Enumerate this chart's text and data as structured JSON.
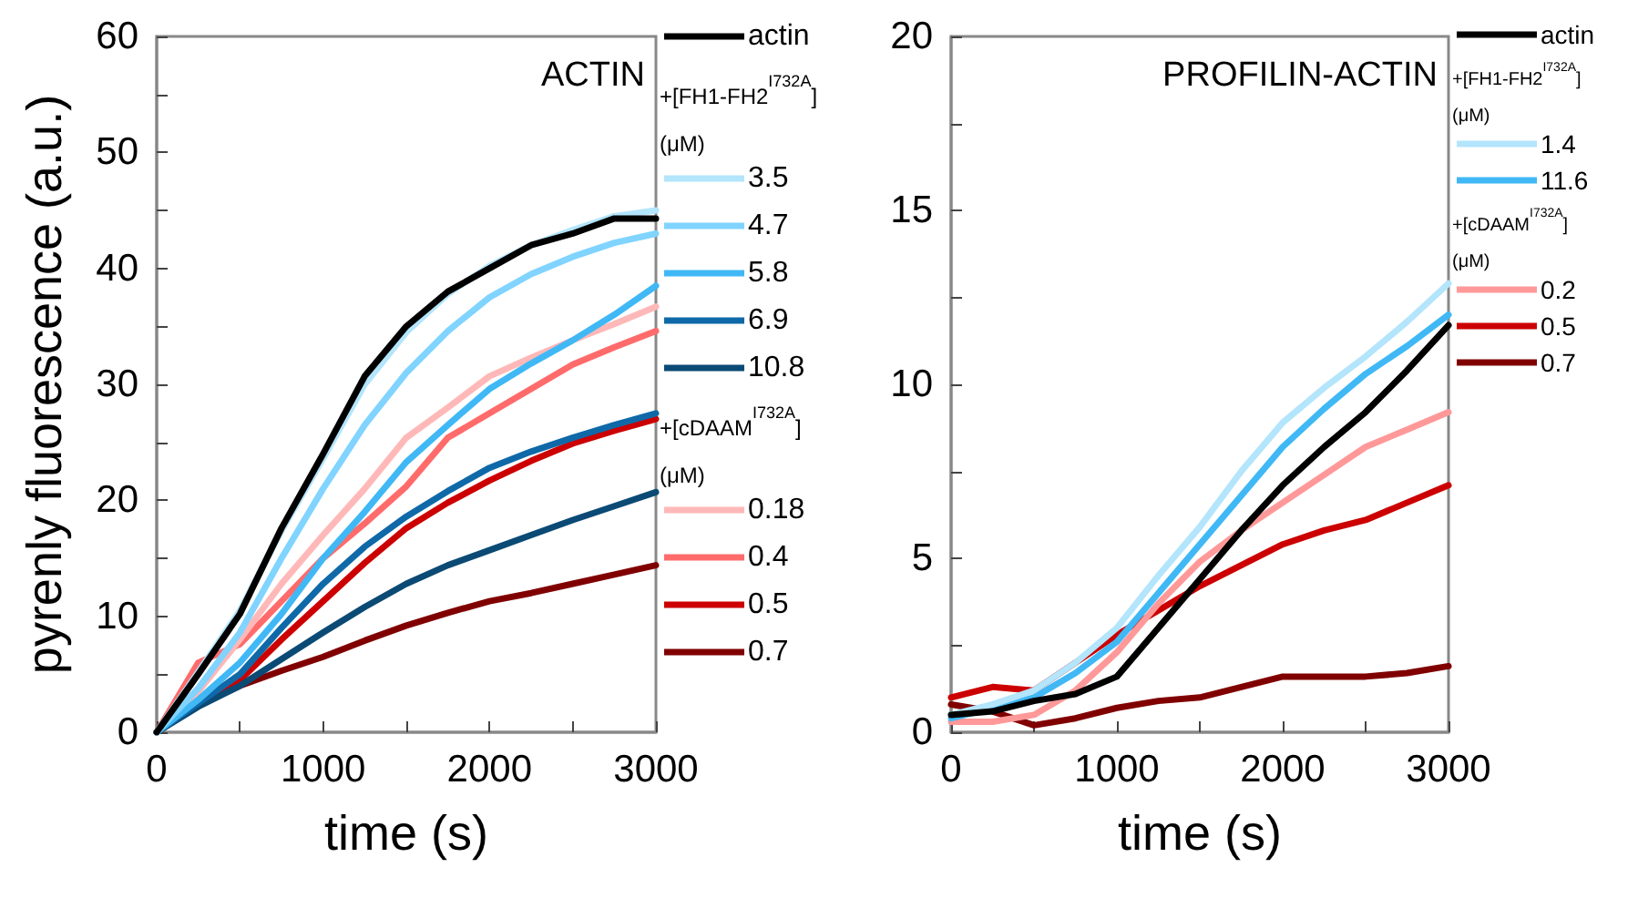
{
  "chart_data": [
    {
      "type": "line",
      "title": "ACTIN",
      "xlabel": "time (s)",
      "ylabel": "pyrenly fluorescence (a.u.)",
      "legend": "right",
      "grid": false,
      "marker": "none",
      "line_style": "solid",
      "annotations": [
        "+[FH1-FH2$^{I732A}$]\n(μM)",
        "+[cDAAM$^{I732A}$]\n(μM)"
      ],
      "x": [
        0,
        250,
        500,
        750,
        1000,
        1250,
        1500,
        1750,
        2000,
        2250,
        2500,
        2750,
        3000
      ],
      "xlim": [
        0,
        3000
      ],
      "xticks": [
        0,
        {
          "value": 500,
          "label": null
        },
        1000,
        {
          "value": 1500,
          "label": null
        },
        2000,
        {
          "value": 2500,
          "label": null
        },
        3000
      ],
      "ylim": [
        0,
        60
      ],
      "yticks": [
        0,
        {
          "value": 5,
          "label": null
        },
        10,
        {
          "value": 15,
          "label": null
        },
        20,
        {
          "value": 25,
          "label": null
        },
        30,
        {
          "value": 35,
          "label": null
        },
        40,
        {
          "value": 45,
          "label": null
        },
        50,
        {
          "value": 55,
          "label": null
        },
        60
      ],
      "series": [
        {
          "name": "actin",
          "color": "#000000",
          "values": [
            0,
            5,
            10.2,
            17.6,
            24,
            30.7,
            35,
            38,
            40,
            42,
            43,
            44.3,
            44.3
          ]
        },
        {
          "name": "3.5",
          "color": "#b3e5fc",
          "values": [
            0,
            5.2,
            10.5,
            17.4,
            23.6,
            30,
            34.5,
            37.8,
            40.2,
            42,
            43.3,
            44.5,
            45
          ]
        },
        {
          "name": "4.7",
          "color": "#80d4ff",
          "values": [
            0,
            3.8,
            8.6,
            15,
            21,
            26.5,
            31,
            34.6,
            37.5,
            39.5,
            41,
            42.2,
            43
          ]
        },
        {
          "name": "5.8",
          "color": "#40b8f5",
          "values": [
            0,
            2.8,
            6,
            10.2,
            15,
            19,
            23.3,
            26.5,
            29.6,
            31.8,
            33.8,
            36,
            38.5
          ]
        },
        {
          "name": "6.9",
          "color": "#0f69a8",
          "values": [
            0,
            2.5,
            5,
            9,
            12.8,
            16,
            18.6,
            20.8,
            22.8,
            24.2,
            25.4,
            26.5,
            27.5
          ]
        },
        {
          "name": "10.8",
          "color": "#0a4a75",
          "values": [
            0,
            2.2,
            4,
            6.3,
            8.6,
            10.8,
            12.8,
            14.4,
            15.7,
            17,
            18.3,
            19.5,
            20.7
          ]
        },
        {
          "name": "0.18",
          "color": "#ffb8b8",
          "values": [
            0,
            3.5,
            8,
            12.8,
            17,
            21,
            25.4,
            28,
            30.7,
            32.3,
            33.8,
            35.2,
            36.7
          ]
        },
        {
          "name": "0.4",
          "color": "#ff6b6b",
          "values": [
            0,
            6,
            7.6,
            11.3,
            15,
            18,
            21.2,
            25.4,
            27.5,
            29.6,
            31.7,
            33.2,
            34.6
          ]
        },
        {
          "name": "0.5",
          "color": "#cc0000",
          "values": [
            0,
            2.9,
            4.5,
            8,
            11.3,
            14.6,
            17.6,
            19.8,
            21.7,
            23.4,
            24.9,
            26,
            27
          ]
        },
        {
          "name": "0.7",
          "color": "#800000",
          "values": [
            0,
            2.4,
            4,
            5.3,
            6.5,
            7.9,
            9.2,
            10.3,
            11.3,
            12,
            12.8,
            13.6,
            14.4
          ]
        }
      ]
    },
    {
      "type": "line",
      "title": "PROFILIN-ACTIN",
      "xlabel": "time (s)",
      "legend": "right",
      "grid": false,
      "marker": "none",
      "line_style": "solid",
      "annotations": [
        "+[FH1-FH2$^{I732A}$]\n(μM)",
        "+[cDAAM$^{I732A}$]\n(μM)"
      ],
      "x": [
        0,
        250,
        500,
        750,
        1000,
        1250,
        1500,
        1750,
        2000,
        2250,
        2500,
        2750,
        3000
      ],
      "xlim": [
        0,
        3000
      ],
      "xticks": [
        0,
        {
          "value": 500,
          "label": null
        },
        1000,
        {
          "value": 1500,
          "label": null
        },
        2000,
        {
          "value": 2500,
          "label": null
        },
        3000
      ],
      "ylim": [
        0,
        20
      ],
      "yticks": [
        0,
        {
          "value": 2.5,
          "label": null
        },
        5,
        {
          "value": 7.5,
          "label": null
        },
        10,
        {
          "value": 12.5,
          "label": null
        },
        15,
        {
          "value": 17.5,
          "label": null
        },
        20
      ],
      "series": [
        {
          "name": "actin",
          "color": "#000000",
          "values": [
            0.5,
            0.6,
            0.9,
            1.1,
            1.6,
            3,
            4.4,
            5.8,
            7.1,
            8.2,
            9.2,
            10.4,
            11.7
          ]
        },
        {
          "name": "1.4",
          "color": "#b3e5fc",
          "values": [
            0.5,
            0.8,
            1.2,
            2,
            3,
            4.5,
            5.9,
            7.5,
            8.9,
            9.9,
            10.8,
            11.8,
            12.9
          ]
        },
        {
          "name": "11.6",
          "color": "#40b8f5",
          "values": [
            0.4,
            0.7,
            1,
            1.7,
            2.6,
            4,
            5.4,
            6.8,
            8.2,
            9.3,
            10.3,
            11.1,
            12
          ]
        },
        {
          "name": "0.2",
          "color": "#ff9999",
          "values": [
            0.3,
            0.3,
            0.5,
            1.2,
            2.3,
            3.7,
            4.9,
            5.8,
            6.6,
            7.4,
            8.2,
            8.7,
            9.2
          ]
        },
        {
          "name": "0.5",
          "color": "#cc0000",
          "values": [
            1.0,
            1.3,
            1.2,
            2,
            2.8,
            3.5,
            4.2,
            4.8,
            5.4,
            5.8,
            6.1,
            6.6,
            7.1
          ]
        },
        {
          "name": "0.7",
          "color": "#800000",
          "values": [
            0.8,
            0.6,
            0.2,
            0.4,
            0.7,
            0.9,
            1,
            1.3,
            1.6,
            1.6,
            1.6,
            1.7,
            1.9
          ]
        }
      ]
    }
  ]
}
